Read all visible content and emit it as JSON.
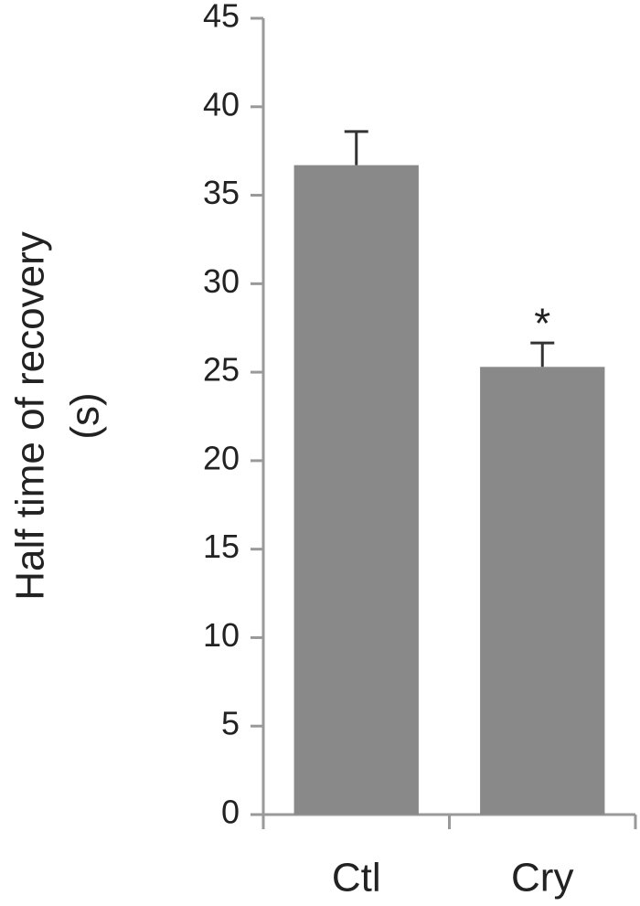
{
  "chart_data": {
    "type": "bar",
    "ylabel": [
      "Half time of recovery",
      "(s)"
    ],
    "categories": [
      "Ctl",
      "Cry"
    ],
    "values": [
      36.7,
      25.3
    ],
    "errors": [
      1.9,
      1.35
    ],
    "color": "#898989",
    "ylim": [
      0,
      45
    ],
    "yticks": [
      0,
      5,
      10,
      15,
      20,
      25,
      30,
      35,
      40,
      45
    ],
    "grid": false,
    "annotations": [
      {
        "text": "*",
        "category": 1
      }
    ]
  }
}
